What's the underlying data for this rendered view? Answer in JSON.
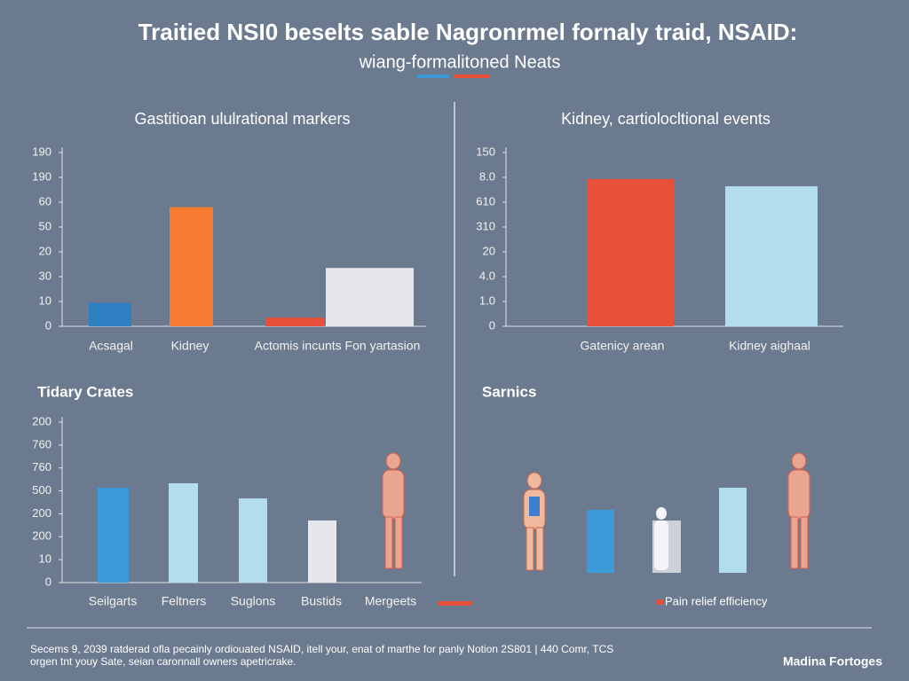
{
  "title": "Traitied NSI0 beselts sable Nagronrmel fornaly traid, NSAID:",
  "subtitle": "wiang-formalitoned Neats",
  "footer": [
    "Secems 9, 2039 ratderad ofla pecainly ordiouated NSAID, itell your, enat of marthe for panly Notion 2S801 | 440 Comr, TCS",
    "orgen tnt youy Sate, seian caronnall owners apetricrake."
  ],
  "brand": "Madina Fortoges",
  "chart_data": [
    {
      "type": "bar",
      "title": "Gastitioan ululrational markers",
      "categories": [
        "Acsagal",
        "Kidney",
        "Actomis incunts Fon yartasion",
        null
      ],
      "values": [
        9.5,
        48,
        3.5,
        23.5
      ],
      "colors": [
        "#2f80c2",
        "#f47b2f",
        "#e8503a",
        "#e6e7ec"
      ],
      "ylim": [
        0,
        70
      ],
      "yticks": [
        0,
        10,
        {
          "value": 20,
          "label": "30"
        },
        {
          "value": 30,
          "label": "20"
        },
        {
          "value": 40,
          "label": "50"
        },
        {
          "value": 50,
          "label": "60"
        },
        {
          "value": 60,
          "label": "190"
        },
        {
          "value": 70,
          "label": "190"
        }
      ]
    },
    {
      "type": "bar",
      "title": "Kidney, cartiolocltional events",
      "categories": [
        "Gatenicy arean",
        "Kidney aighaal"
      ],
      "values": [
        59.3,
        56.4
      ],
      "colors": [
        "#e8503a",
        "#b3dcef"
      ],
      "ylim": [
        0,
        70
      ],
      "yticks": [
        0,
        {
          "value": 10,
          "label": "1.0"
        },
        {
          "value": 20,
          "label": "4.0"
        },
        {
          "value": 30,
          "label": "20"
        },
        {
          "value": 40,
          "label": "310"
        },
        {
          "value": 50,
          "label": "610"
        },
        {
          "value": 60,
          "label": "8.0"
        },
        {
          "value": 70,
          "label": "150"
        }
      ]
    },
    {
      "type": "bar",
      "title": "Tidary Crates",
      "categories": [
        "Seilgarts",
        "Feltners",
        "Suglons",
        "Bustids",
        "Mergeets"
      ],
      "values": [
        41.4,
        43.3,
        36.7,
        27.1,
        null
      ],
      "colors": [
        "#3d9ad8",
        "#b3dcef",
        "#b3dcef",
        "#e6e7ec",
        "#e6e7ec"
      ],
      "ylim": [
        0,
        70
      ],
      "yticks": [
        0,
        10,
        {
          "value": 20,
          "label": "200"
        },
        {
          "value": 30,
          "label": "200"
        },
        {
          "value": 40,
          "label": "500"
        },
        {
          "value": 50,
          "label": "760"
        },
        {
          "value": 60,
          "label": "760"
        },
        {
          "value": 70,
          "label": "200"
        }
      ]
    },
    {
      "type": "bar",
      "title": "Sarnics",
      "values": [
        71,
        96
      ],
      "colors": [
        "#3d9ad8",
        "#b3dcef"
      ],
      "ylim": [
        0,
        100
      ],
      "legend": "Pain relief efficiency",
      "legend_color": "#e8503a"
    }
  ]
}
